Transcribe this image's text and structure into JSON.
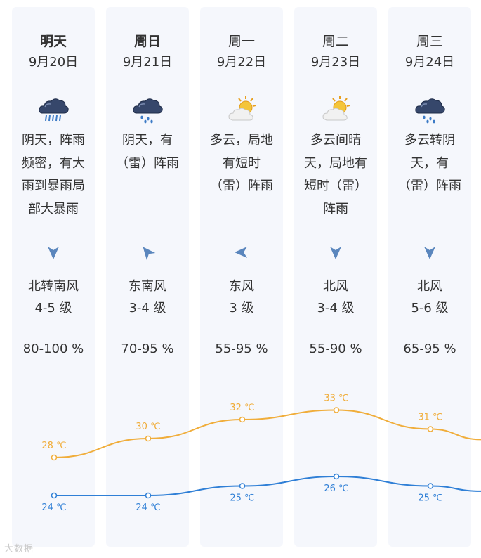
{
  "days": [
    {
      "day": "明天",
      "date": "9月20日",
      "bold": true,
      "icon": "heavy-rain-icon",
      "desc": [
        "阴天，阵雨",
        "频密，有大",
        "雨到暴雨局",
        "部大暴雨"
      ],
      "wind_dir_icon": "wind-north-arrow-icon",
      "wind_rot": 0,
      "wind": "北转南风",
      "wind_level": "4-5 级",
      "humidity": "80-100 %"
    },
    {
      "day": "周日",
      "date": "9月21日",
      "bold": true,
      "icon": "rain-icon",
      "desc": [
        "阴天，有",
        "（雷）阵雨"
      ],
      "wind_dir_icon": "wind-southeast-arrow-icon",
      "wind_rot": 140,
      "wind": "东南风",
      "wind_level": "3-4 级",
      "humidity": "70-95 %"
    },
    {
      "day": "周一",
      "date": "9月22日",
      "bold": false,
      "icon": "sun-cloud-icon",
      "desc": [
        "多云，局地",
        "有短时",
        "（雷）阵雨"
      ],
      "wind_dir_icon": "wind-east-arrow-icon",
      "wind_rot": 90,
      "wind": "东风",
      "wind_level": "3 级",
      "humidity": "55-95 %"
    },
    {
      "day": "周二",
      "date": "9月23日",
      "bold": false,
      "icon": "sun-cloud-icon",
      "desc": [
        "多云间晴",
        "天，局地有",
        "短时（雷）",
        "阵雨"
      ],
      "wind_dir_icon": "wind-north-arrow-icon",
      "wind_rot": 0,
      "wind": "北风",
      "wind_level": "3-4 级",
      "humidity": "55-90 %"
    },
    {
      "day": "周三",
      "date": "9月24日",
      "bold": false,
      "icon": "rain-icon",
      "desc": [
        "多云转阴",
        "天，有",
        "（雷）阵雨"
      ],
      "wind_dir_icon": "wind-north-arrow-icon",
      "wind_rot": 0,
      "wind": "北风",
      "wind_level": "5-6 级",
      "humidity": "65-95 %"
    }
  ],
  "chart_data": {
    "type": "line",
    "categories": [
      "9月20日",
      "9月21日",
      "9月22日",
      "9月23日",
      "9月24日"
    ],
    "series": [
      {
        "values": [
          28,
          30,
          32,
          33,
          31
        ],
        "color": "#f0ad3a"
      },
      {
        "values": [
          24,
          24,
          25,
          26,
          25
        ],
        "color": "#2f7fd6"
      }
    ],
    "unit": "℃"
  },
  "watermark": "大数据"
}
